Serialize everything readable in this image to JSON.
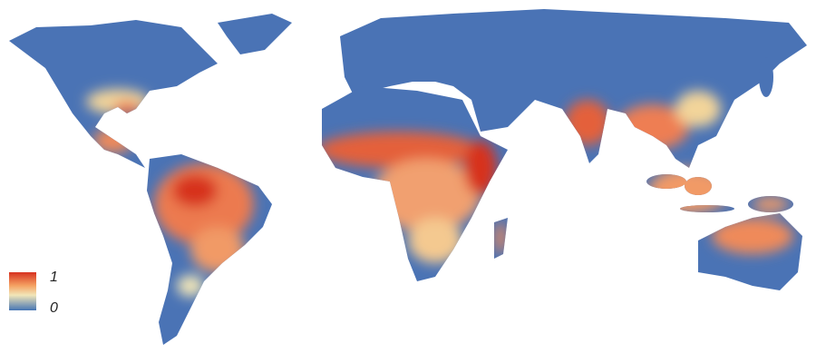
{
  "legend": {
    "max": 1,
    "min": 0
  }
}
